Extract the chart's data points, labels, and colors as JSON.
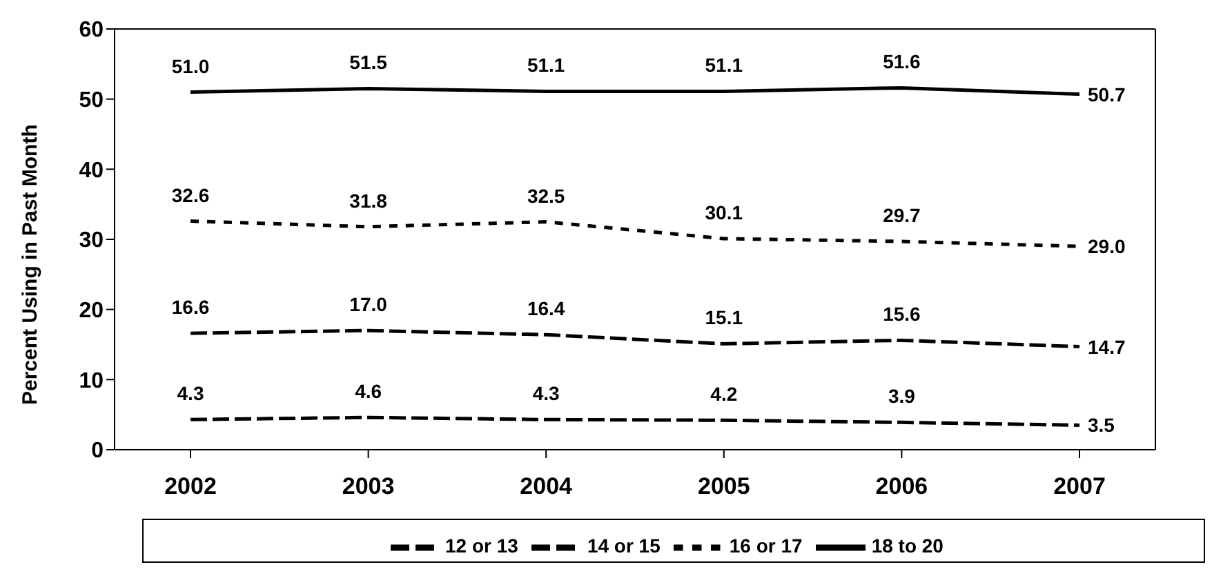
{
  "chart_data": {
    "type": "line",
    "ylabel": "Percent Using in Past Month",
    "categories": [
      "2002",
      "2003",
      "2004",
      "2005",
      "2006",
      "2007"
    ],
    "series": [
      {
        "name": "12 or 13",
        "color": "#000000",
        "line_style": "dashed",
        "values": [
          4.3,
          4.6,
          4.3,
          4.2,
          3.9,
          3.5
        ],
        "value_labels": [
          "4.3",
          "4.6",
          "4.3",
          "4.2",
          "3.9",
          "3.5"
        ]
      },
      {
        "name": "14 or 15",
        "color": "#000000",
        "line_style": "dashed",
        "values": [
          16.6,
          17.0,
          16.4,
          15.1,
          15.6,
          14.7
        ],
        "value_labels": [
          "16.6",
          "17.0",
          "16.4",
          "15.1",
          "15.6",
          "14.7"
        ]
      },
      {
        "name": "16 or 17",
        "color": "#000000",
        "line_style": "dotted",
        "values": [
          32.6,
          31.8,
          32.5,
          30.1,
          29.7,
          29.0
        ],
        "value_labels": [
          "32.6",
          "31.8",
          "32.5",
          "30.1",
          "29.7",
          "29.0"
        ]
      },
      {
        "name": "18 to 20",
        "color": "#000000",
        "line_style": "solid",
        "values": [
          51.0,
          51.5,
          51.1,
          51.1,
          51.6,
          50.7
        ],
        "value_labels": [
          "51.0",
          "51.5",
          "51.1",
          "51.1",
          "51.6",
          "50.7"
        ]
      }
    ],
    "ylim": [
      0,
      60
    ],
    "yticks": [
      0,
      10,
      20,
      30,
      40,
      50,
      60
    ],
    "legend": "bottom",
    "marker": "none"
  }
}
